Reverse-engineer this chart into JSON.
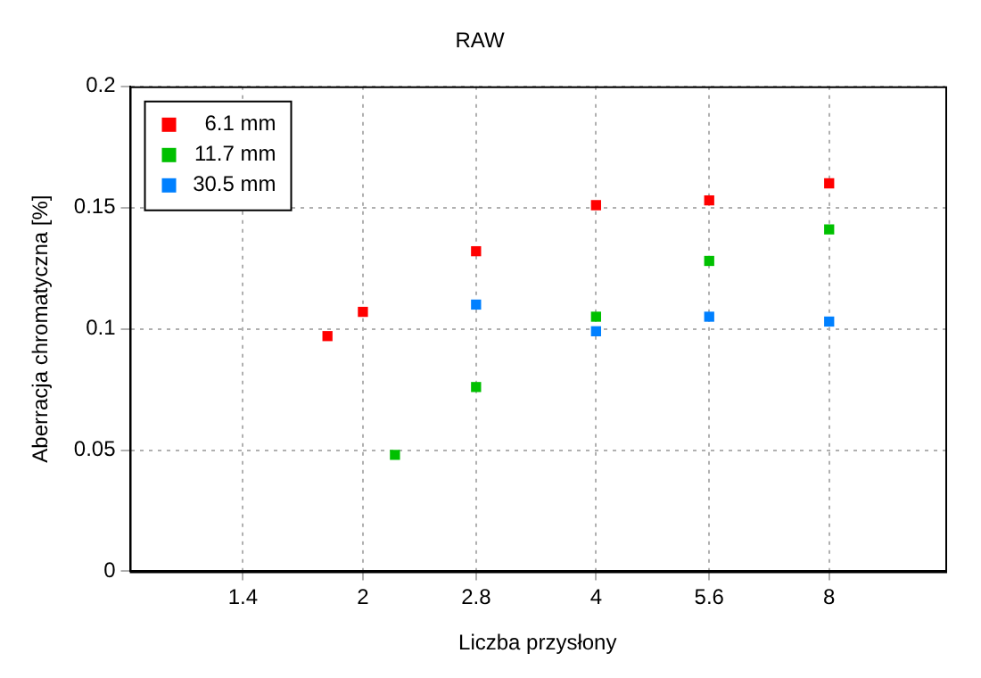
{
  "chart_data": {
    "type": "scatter",
    "title": "RAW",
    "xlabel": "Liczba przysłony",
    "ylabel": "Aberracja chromatyczna [%]",
    "log": "x",
    "xlim": [
      1,
      11.3
    ],
    "xticks": [
      1.4,
      2,
      2.8,
      4,
      5.6,
      8
    ],
    "ylim": [
      0,
      0.2
    ],
    "yticks": [
      0,
      0.05,
      0.1,
      0.15,
      0.2
    ],
    "grid": true,
    "legend": "top left",
    "marker": "square",
    "series": [
      {
        "name": "6.1 mm",
        "color": "#ff0000",
        "x": [
          1.8,
          2,
          2.8,
          4,
          5.6,
          8
        ],
        "values": [
          0.097,
          0.107,
          0.132,
          0.151,
          0.153,
          0.16
        ]
      },
      {
        "name": "11.7 mm",
        "color": "#00c000",
        "x": [
          2.2,
          2.8,
          4,
          5.6,
          8
        ],
        "values": [
          0.048,
          0.076,
          0.105,
          0.128,
          0.141
        ]
      },
      {
        "name": "30.5 mm",
        "color": "#0080ff",
        "x": [
          2.8,
          4,
          5.6,
          8
        ],
        "values": [
          0.11,
          0.099,
          0.105,
          0.103
        ]
      }
    ]
  }
}
